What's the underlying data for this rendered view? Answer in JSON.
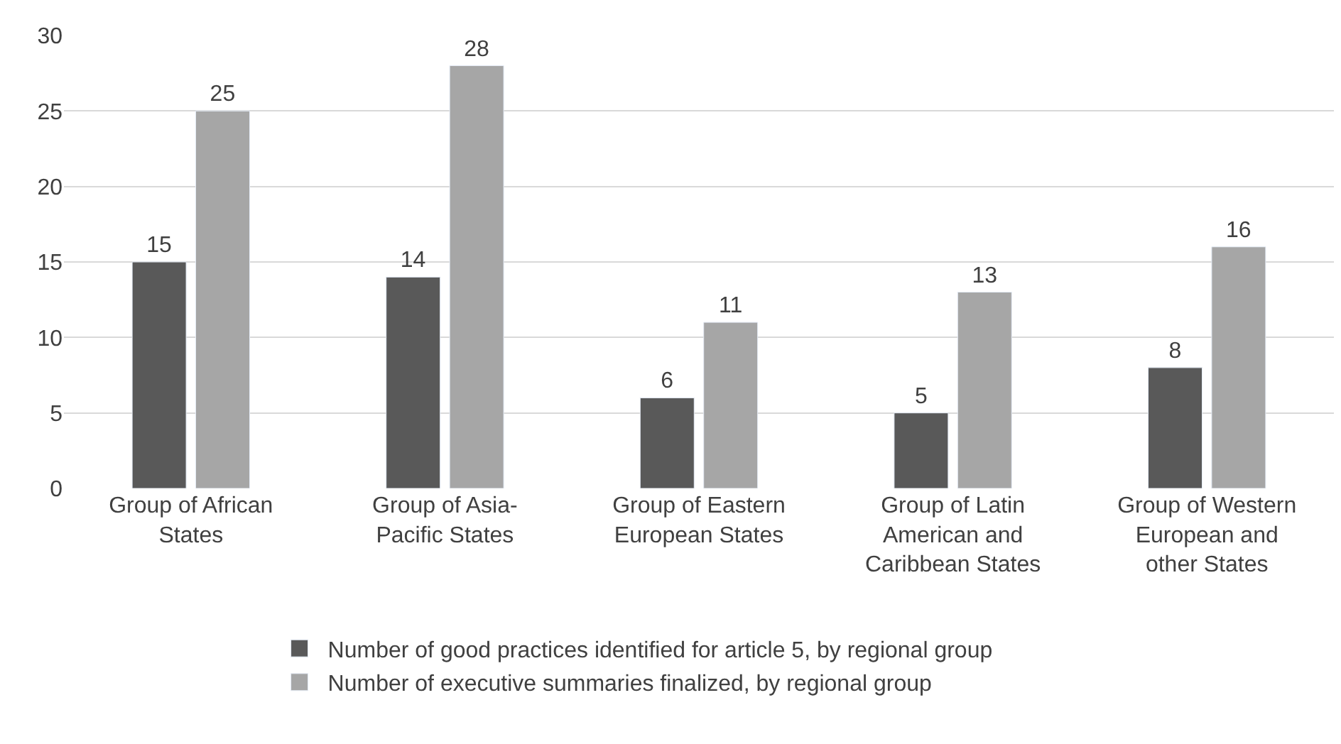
{
  "chart_data": {
    "type": "bar",
    "categories": [
      "Group of African States",
      "Group of Asia-Pacific States",
      "Group of Eastern European States",
      "Group of Latin American and Caribbean States",
      "Group of Western European and other States"
    ],
    "series": [
      {
        "name": "Number of good practices identified for article 5, by regional group",
        "color": "#595959",
        "values": [
          15,
          14,
          6,
          5,
          8
        ]
      },
      {
        "name": "Number of executive summaries finalized, by regional group",
        "color": "#a6a6a6",
        "values": [
          25,
          28,
          11,
          13,
          16
        ]
      }
    ],
    "ylim": [
      0,
      30
    ],
    "yticks": [
      0,
      5,
      10,
      15,
      20,
      25,
      30
    ],
    "grid": "y",
    "legend": "bottom",
    "data_labels": true
  }
}
